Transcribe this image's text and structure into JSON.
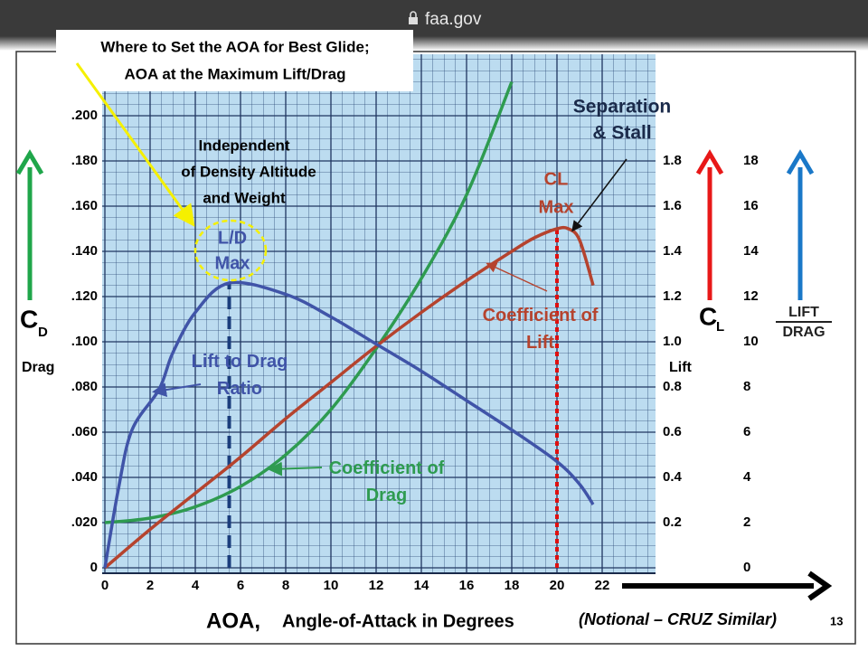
{
  "browser": {
    "url": "faa.gov"
  },
  "slide_number": "13",
  "chart_data": {
    "type": "line",
    "title_lines": [
      "Where to Set the AOA for Best Glide;",
      "AOA at the Maximum Lift/Drag"
    ],
    "xlabel_prefix": "AOA,",
    "xlabel": "Angle-of-Attack in Degrees",
    "note": "(Notional – CRUZ Similar)",
    "xlim": [
      0,
      24.4
    ],
    "xticks": [
      0,
      2,
      4,
      6,
      8,
      10,
      12,
      14,
      16,
      18,
      20,
      22
    ],
    "ylim": [
      0,
      0.22
    ],
    "yticks": [
      0,
      {
        "value": 0.02,
        "label": ".020"
      },
      {
        "value": 0.04,
        "label": ".040"
      },
      {
        "value": 0.06,
        "label": ".060"
      },
      {
        "value": 0.08,
        "label": ".080"
      },
      {
        "value": 0.1,
        "label": ".100"
      },
      {
        "value": 0.12,
        "label": ".120"
      },
      {
        "value": 0.14,
        "label": ".140"
      },
      {
        "value": 0.16,
        "label": ".160"
      },
      {
        "value": 0.18,
        "label": ".180"
      },
      {
        "value": 0.2,
        "label": ".200"
      }
    ],
    "y2lim": [
      0,
      2.2
    ],
    "y2ticks": [
      0.2,
      0.4,
      0.6,
      0.8,
      {
        "value": 1,
        "label": "1.0"
      },
      1.2,
      1.4,
      1.6,
      1.8
    ],
    "y3lim": [
      0,
      22
    ],
    "y3ticks": [
      0,
      2,
      4,
      6,
      8,
      10,
      12,
      14,
      16,
      18
    ],
    "grid": true,
    "y_axis_symbol": "C",
    "y_axis_subscript": "D",
    "y_axis_word": "Drag",
    "y2_axis_symbol": "C",
    "y2_axis_subscript": "L",
    "y2_axis_word": "Lift",
    "y3_axis_label_top": "LIFT",
    "y3_axis_label_bottom": "DRAG",
    "series": [
      {
        "name": "Coefficient of Drag",
        "color": "#2e9b50",
        "x": [
          0,
          2,
          4,
          6,
          8,
          10,
          12,
          14,
          16,
          18
        ],
        "values": [
          0.02,
          0.022,
          0.027,
          0.036,
          0.05,
          0.07,
          0.097,
          0.128,
          0.165,
          0.215
        ]
      },
      {
        "name": "Coefficient of Lift",
        "color": "#b5432e",
        "axis": "y2",
        "x": [
          0,
          2,
          4,
          6,
          8,
          10,
          12,
          14,
          16,
          18,
          19,
          20,
          20.5,
          21,
          21.6
        ],
        "values": [
          0,
          0.17,
          0.33,
          0.49,
          0.66,
          0.82,
          0.98,
          1.13,
          1.27,
          1.4,
          1.46,
          1.5,
          1.5,
          1.45,
          1.25
        ]
      },
      {
        "name": "Lift to Drag Ratio",
        "color": "#4054a8",
        "axis": "y3",
        "x": [
          0,
          0.6,
          1.2,
          2.4,
          3,
          4,
          5.5,
          8,
          10,
          12,
          14,
          16,
          18,
          20,
          21,
          21.6
        ],
        "values": [
          0,
          3.5,
          6.1,
          7.9,
          9.5,
          11.3,
          12.6,
          12.1,
          11.1,
          9.9,
          8.7,
          7.4,
          6.1,
          4.7,
          3.7,
          2.8
        ]
      }
    ],
    "reference_lines": [
      {
        "x": 5.5,
        "to": 12.6,
        "axis": "y3",
        "color": "#1a3d7c",
        "style": "dashed"
      },
      {
        "x": 20,
        "to": 1.5,
        "axis": "y2",
        "color": "#e01010",
        "style": "dotted"
      }
    ],
    "annotations": {
      "independent": [
        "Independent",
        "of Density Altitude",
        "and Weight"
      ],
      "ld_max": [
        "L/D",
        "Max"
      ],
      "cl_max": [
        "CL",
        "Max"
      ],
      "separation": [
        "Separation",
        "& Stall"
      ]
    }
  }
}
